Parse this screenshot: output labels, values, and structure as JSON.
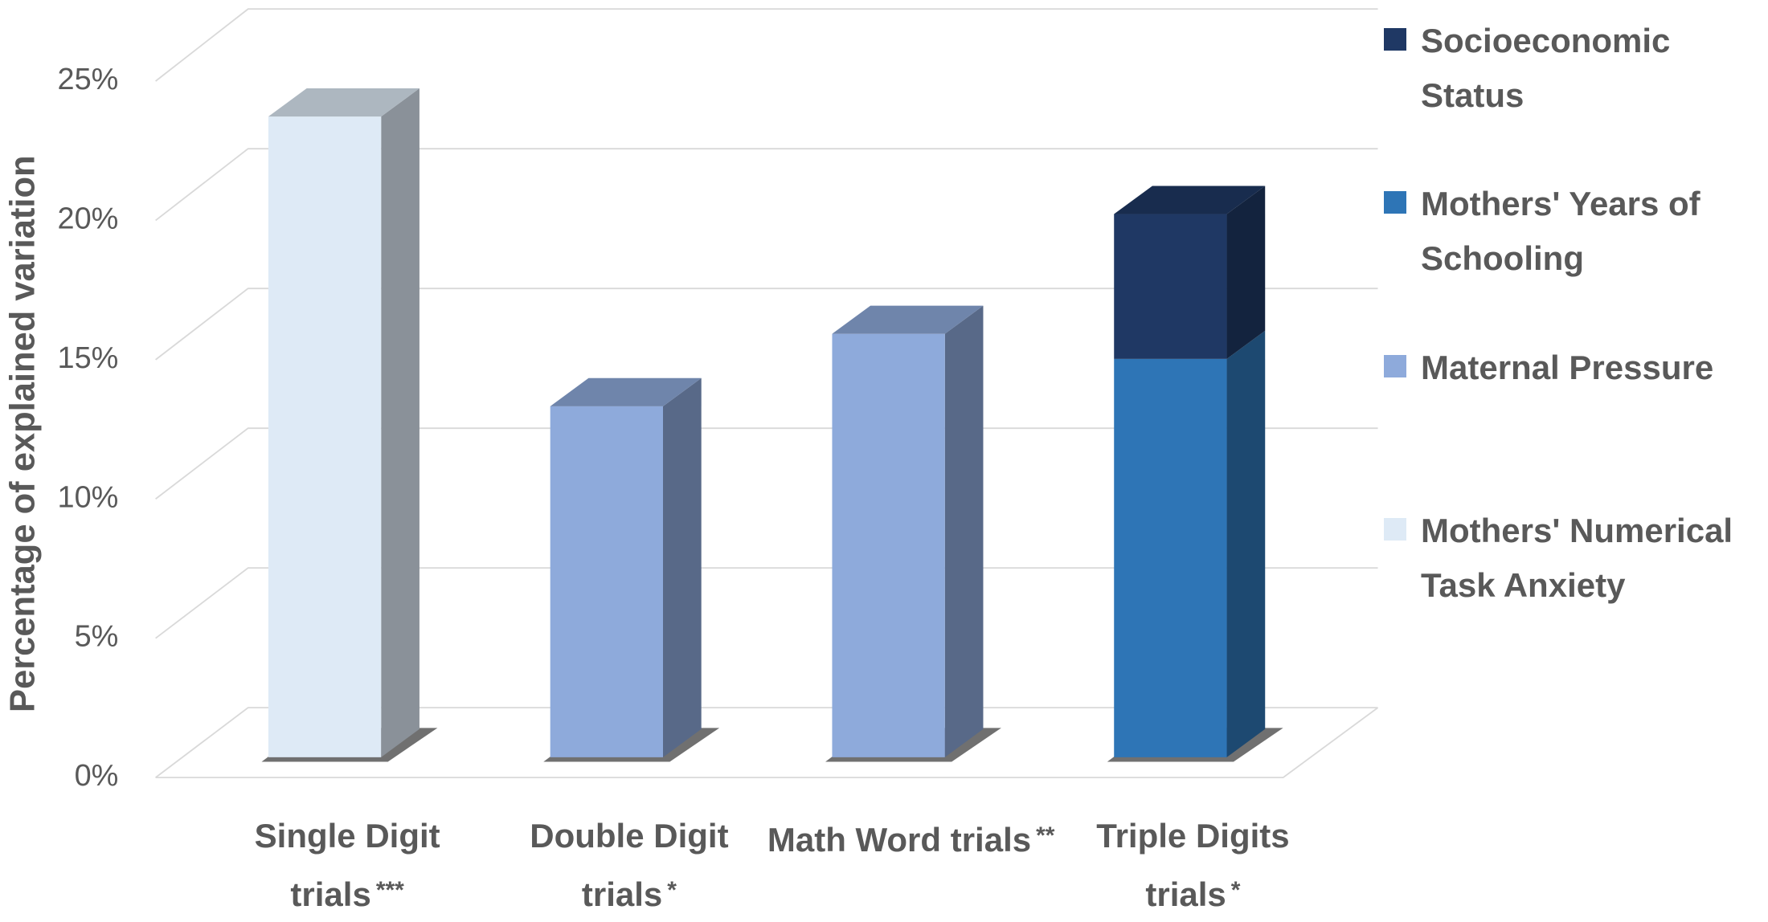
{
  "chart_data": {
    "type": "bar3d-stacked",
    "y_label": "Percentage of explained variation",
    "categories": [
      "Single Digit trials",
      "Double Digit trials",
      "Math Word trials",
      "Triple Digits trials"
    ],
    "significance": [
      "***",
      "*",
      "**",
      "*"
    ],
    "series": [
      {
        "name": "Mothers' Numerical Task Anxiety",
        "color": "#deeaf6",
        "values": [
          23.0,
          null,
          null,
          null
        ]
      },
      {
        "name": "Maternal Pressure",
        "color": "#8eaadb",
        "values": [
          null,
          12.6,
          15.2,
          null
        ]
      },
      {
        "name": "Mothers' Years of Schooling",
        "color": "#2e75b6",
        "values": [
          null,
          null,
          null,
          14.3
        ]
      },
      {
        "name": "Socioeconomic Status",
        "color": "#1f3864",
        "values": [
          null,
          null,
          null,
          5.2
        ]
      }
    ],
    "ylim": [
      0,
      25
    ],
    "yticks": [
      {
        "value": 0,
        "label": "0%"
      },
      {
        "value": 5,
        "label": "5%"
      },
      {
        "value": 10,
        "label": "10%"
      },
      {
        "value": 15,
        "label": "15%"
      },
      {
        "value": 20,
        "label": "20%"
      },
      {
        "value": 25,
        "label": "25%"
      }
    ],
    "grid": true
  }
}
